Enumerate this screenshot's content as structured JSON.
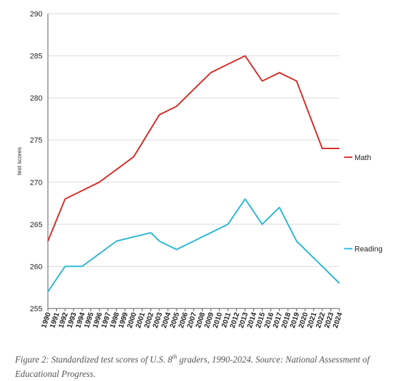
{
  "chart_data": {
    "type": "line",
    "ylabel": "test scores",
    "xlabel": "",
    "ylim": [
      255,
      290
    ],
    "yticks": [
      255,
      260,
      265,
      270,
      275,
      280,
      285,
      290
    ],
    "xticks": [
      "1990",
      "1991",
      "1992",
      "1993",
      "1994",
      "1995",
      "1996",
      "1997",
      "1998",
      "1999",
      "2000",
      "2001",
      "2002",
      "2003",
      "2004",
      "2005",
      "2006",
      "2007",
      "2008",
      "2009",
      "2010",
      "2011",
      "2012",
      "2013",
      "2014",
      "2015",
      "2016",
      "2017",
      "2018",
      "2019",
      "2020",
      "2021",
      "2022",
      "2023",
      "2024"
    ],
    "grid": "horizontal",
    "legend": "right, labels at line ends",
    "series": [
      {
        "name": "Math",
        "color": "#d62a24",
        "x": [
          1990,
          1992,
          1996,
          2000,
          2003,
          2005,
          2007,
          2009,
          2011,
          2013,
          2015,
          2017,
          2019,
          2022,
          2024
        ],
        "y": [
          263,
          268,
          270,
          273,
          278,
          279,
          281,
          283,
          284,
          285,
          282,
          283,
          282,
          274,
          274
        ]
      },
      {
        "name": "Reading",
        "color": "#29b6d8",
        "x": [
          1990,
          1992,
          1994,
          1998,
          2002,
          2003,
          2005,
          2007,
          2009,
          2011,
          2013,
          2015,
          2017,
          2019,
          2022,
          2024
        ],
        "y": [
          257,
          260,
          260,
          263,
          264,
          263,
          262,
          263,
          264,
          265,
          268,
          265,
          267,
          263,
          260,
          258
        ]
      }
    ]
  },
  "caption": {
    "prefix": "Figure 2: Standardized test scores of U.S. 8",
    "sup": "th",
    "suffix": " graders, 1990-2024. Source: National Assessment of Educational Progress."
  }
}
